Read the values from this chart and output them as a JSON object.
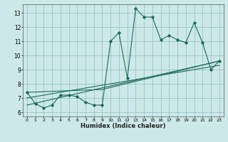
{
  "xlabel": "Humidex (Indice chaleur)",
  "bg_color": "#cde8e8",
  "line_color": "#1a6b5a",
  "grid_color": "#8ab8b8",
  "xlim": [
    -0.5,
    23.5
  ],
  "ylim": [
    5.7,
    13.6
  ],
  "xticks": [
    0,
    1,
    2,
    3,
    4,
    5,
    6,
    7,
    8,
    9,
    10,
    11,
    12,
    13,
    14,
    15,
    16,
    17,
    18,
    19,
    20,
    21,
    22,
    23
  ],
  "yticks": [
    6,
    7,
    8,
    9,
    10,
    11,
    12,
    13
  ],
  "series1_x": [
    0,
    1,
    2,
    3,
    4,
    5,
    6,
    7,
    8,
    9,
    10,
    11,
    12,
    13,
    14,
    15,
    16,
    17,
    18,
    19,
    20,
    21,
    22,
    23
  ],
  "series1_y": [
    7.4,
    6.6,
    6.3,
    6.5,
    7.2,
    7.2,
    7.1,
    6.7,
    6.5,
    6.5,
    11.0,
    11.6,
    8.4,
    13.3,
    12.7,
    12.7,
    11.1,
    11.4,
    11.1,
    10.9,
    12.3,
    10.9,
    9.0,
    9.6
  ],
  "series2_x": [
    0,
    23
  ],
  "series2_y": [
    7.0,
    9.3
  ],
  "series3_x": [
    0,
    9,
    23
  ],
  "series3_y": [
    7.4,
    7.6,
    9.6
  ],
  "series4_x": [
    0,
    23
  ],
  "series4_y": [
    6.5,
    9.6
  ]
}
